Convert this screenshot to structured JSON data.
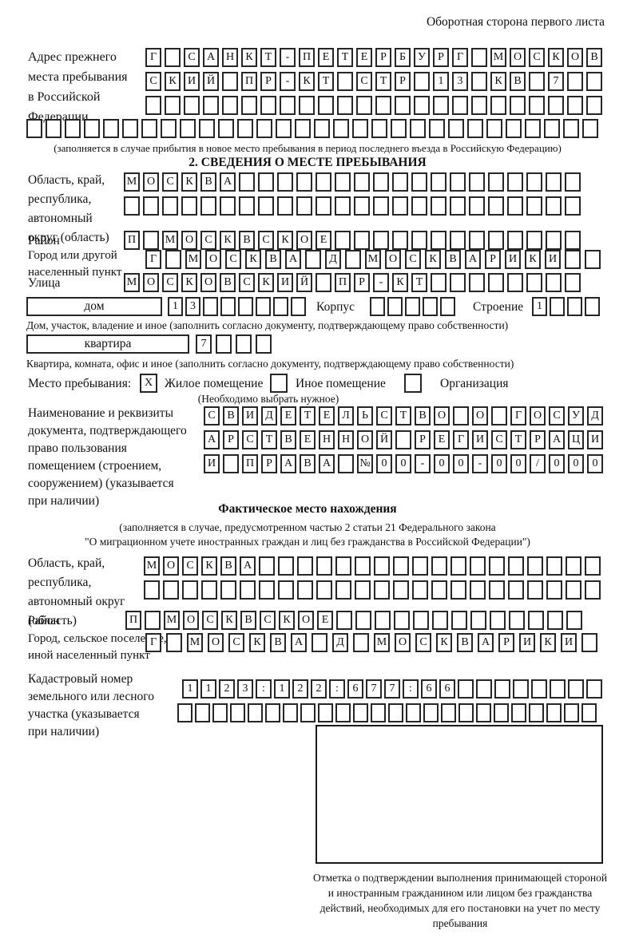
{
  "page": {
    "back_side_note": "Оборотная сторона первого листа"
  },
  "prev_address": {
    "label": "Адрес прежнего\nместа пребывания\nв Российской\nФедерации",
    "row1": {
      "chars": [
        "Г",
        "",
        "С",
        "А",
        "Н",
        "К",
        "Т",
        "-",
        "П",
        "Е",
        "Т",
        "Е",
        "Р",
        "Б",
        "У",
        "Р",
        "Г",
        "",
        "М",
        "О",
        "С",
        "К",
        "О",
        "В"
      ],
      "total": 24
    },
    "row2": {
      "chars": [
        "С",
        "К",
        "И",
        "Й",
        "",
        "П",
        "Р",
        "-",
        "К",
        "Т",
        "",
        "С",
        "Т",
        "Р",
        "",
        "1",
        "3",
        "",
        "К",
        "В",
        "",
        "7"
      ],
      "total": 24
    },
    "row3": 24,
    "row4": 30,
    "note": "(заполняется в случае прибытия в новое место пребывания в период последнего въезда в Российскую Федерацию)"
  },
  "section2": {
    "title": "2. СВЕДЕНИЯ О МЕСТЕ ПРЕБЫВАНИЯ",
    "region": {
      "label": "Область, край,\nреспублика,\nавтономный\nокруг (область)",
      "row1": {
        "chars": [
          "М",
          "О",
          "С",
          "К",
          "В",
          "А"
        ],
        "total": 24
      },
      "row2": 24
    },
    "district": {
      "label": "Район",
      "row": {
        "chars": [
          "П",
          "",
          "М",
          "О",
          "С",
          "К",
          "В",
          "С",
          "К",
          "О",
          "Е"
        ],
        "total": 24
      }
    },
    "city": {
      "label": "Город или другой\nнаселенный пункт",
      "row": {
        "chars": [
          "Г",
          "",
          "М",
          "О",
          "С",
          "К",
          "В",
          "А",
          "",
          "Д",
          "",
          "М",
          "О",
          "С",
          "К",
          "В",
          "А",
          "Р",
          "И",
          "К",
          "И"
        ],
        "total": 23
      }
    },
    "street": {
      "label": "Улица",
      "row": {
        "chars": [
          "М",
          "О",
          "С",
          "К",
          "О",
          "В",
          "С",
          "К",
          "И",
          "Й",
          "",
          "П",
          "Р",
          "-",
          "К",
          "Т"
        ],
        "total": 24
      }
    },
    "house": {
      "box_label": "дом",
      "row": {
        "chars": [
          "1",
          "3"
        ],
        "total": 8
      },
      "korpus_label": "Корпус",
      "korpus_row": 5,
      "stroenie_label": "Строение",
      "stroenie_row": {
        "chars": [
          "1"
        ],
        "total": 4
      }
    },
    "house_note": "Дом, участок, владение и иное (заполнить согласно документу, подтверждающему право собственности)",
    "apartment": {
      "box_label": "квартира",
      "row": {
        "chars": [
          "7"
        ],
        "total": 4
      }
    },
    "apartment_note": "Квартира, комната, офис и иное (заполнить согласно документу, подтверждающему право собственности)",
    "stay_type": {
      "label": "Место пребывания:",
      "options": [
        {
          "label": "Жилое помещение",
          "mark": "X"
        },
        {
          "label": "Иное помещение",
          "mark": ""
        },
        {
          "label": "Организация",
          "mark": ""
        }
      ],
      "note": "(Необходимо выбрать нужное)"
    },
    "document": {
      "label": "Наименование и реквизиты\nдокумента, подтверждающего\nправо пользования\nпомещением (строением,\nсооружением) (указывается\nпри наличии)",
      "row1": {
        "chars": [
          "С",
          "В",
          "И",
          "Д",
          "Е",
          "Т",
          "Е",
          "Л",
          "Ь",
          "С",
          "Т",
          "В",
          "О",
          "",
          "О",
          "",
          "Г",
          "О",
          "С",
          "У",
          "Д"
        ],
        "total": 21
      },
      "row2": {
        "chars": [
          "А",
          "Р",
          "С",
          "Т",
          "В",
          "Е",
          "Н",
          "Н",
          "О",
          "Й",
          "",
          "Р",
          "Е",
          "Г",
          "И",
          "С",
          "Т",
          "Р",
          "А",
          "Ц",
          "И"
        ],
        "total": 21
      },
      "row3": {
        "chars": [
          "И",
          "",
          "П",
          "Р",
          "А",
          "В",
          "А",
          "",
          "№",
          "0",
          "0",
          "-",
          "0",
          "0",
          "-",
          "0",
          "0",
          "/",
          "0",
          "0",
          "0"
        ],
        "total": 21
      }
    }
  },
  "actual_location": {
    "title": "Фактическое место нахождения",
    "note_line1": "(заполняется в случае, предусмотренном частью 2 статьи 21 Федерального закона",
    "note_line2": "\"О миграционном учете иностранных граждан и лиц без гражданства в Российской Федерации\")",
    "region": {
      "label": "Область, край,\nреспублика,\nавтономный округ\n(область)",
      "row1": {
        "chars": [
          "М",
          "О",
          "С",
          "К",
          "В",
          "А"
        ],
        "total": 24
      },
      "row2": 24
    },
    "district": {
      "label": "Район",
      "row": {
        "chars": [
          "П",
          "",
          "М",
          "О",
          "С",
          "К",
          "В",
          "С",
          "К",
          "О",
          "Е"
        ],
        "total": 24
      }
    },
    "city": {
      "label": "Город, сельское поселение,\nиной населенный пункт",
      "row": {
        "chars": [
          "Г",
          "",
          "М",
          "О",
          "С",
          "К",
          "В",
          "А",
          "",
          "Д",
          "",
          "М",
          "О",
          "С",
          "К",
          "В",
          "А",
          "Р",
          "И",
          "К",
          "И"
        ],
        "total": 22
      }
    },
    "cadastral": {
      "label": "Кадастровый номер\nземельного или лесного\nучастка (указывается\nпри наличии)",
      "row1": {
        "chars": [
          "1",
          "1",
          "2",
          "3",
          ":",
          "1",
          "2",
          "2",
          ":",
          "6",
          "7",
          "7",
          ":",
          "6",
          "6"
        ],
        "total": 23
      },
      "row2": 24
    },
    "stamp_caption": "Отметка о подтверждении выполнения принимающей стороной и иностранным гражданином или лицом без гражданства действий, необходимых для его постановки на учет по месту пребывания"
  }
}
